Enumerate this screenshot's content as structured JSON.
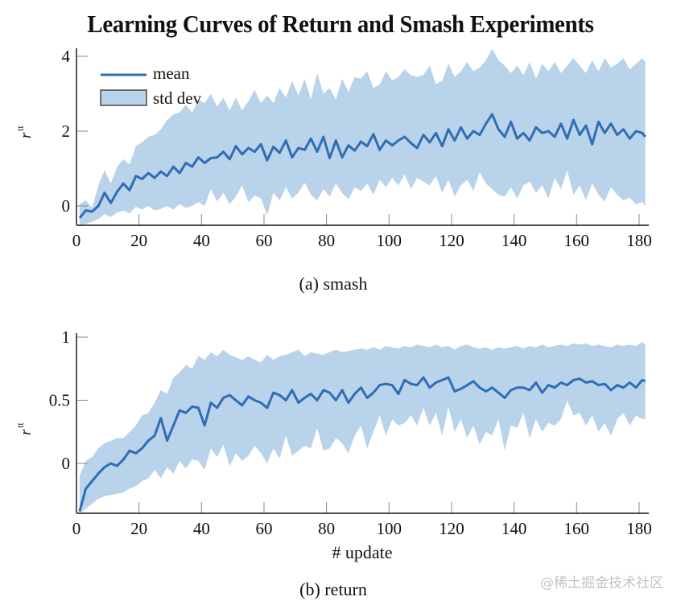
{
  "title": "Learning Curves of Return and Smash Experiments",
  "watermark": "@稀土掘金技术社区",
  "legend": {
    "mean_label": "mean",
    "std_label": "std dev"
  },
  "colors": {
    "mean_line": "#2f6db5",
    "std_fill": "#b9d3ea",
    "axis": "#111111",
    "tick": "#888888"
  },
  "chart_data": [
    {
      "type": "area",
      "id": "smash",
      "caption": "(a) smash",
      "title": "",
      "xlabel": "",
      "ylabel": "r",
      "ylabel_sup": "tt",
      "xlim": [
        0,
        182
      ],
      "ylim": [
        -0.5,
        4.2
      ],
      "xticks": [
        0,
        20,
        40,
        60,
        80,
        100,
        120,
        140,
        160,
        180
      ],
      "yticks": [
        0,
        2,
        4
      ],
      "ytick_labels": [
        "0",
        "2",
        "4"
      ],
      "legend": "top-left",
      "grid": false,
      "x": [
        1,
        3,
        5,
        7,
        9,
        11,
        13,
        15,
        17,
        19,
        21,
        23,
        25,
        27,
        29,
        31,
        33,
        35,
        37,
        39,
        41,
        43,
        45,
        47,
        49,
        51,
        53,
        55,
        57,
        59,
        61,
        63,
        65,
        67,
        69,
        71,
        73,
        75,
        77,
        79,
        81,
        83,
        85,
        87,
        89,
        91,
        93,
        95,
        97,
        99,
        101,
        103,
        105,
        107,
        109,
        111,
        113,
        115,
        117,
        119,
        121,
        123,
        125,
        127,
        129,
        131,
        133,
        135,
        137,
        139,
        141,
        143,
        145,
        147,
        149,
        151,
        153,
        155,
        157,
        159,
        161,
        163,
        165,
        167,
        169,
        171,
        173,
        175,
        177,
        179,
        181,
        182
      ],
      "series": [
        {
          "name": "mean",
          "values": [
            -0.32,
            -0.12,
            -0.15,
            0.0,
            0.35,
            0.08,
            0.38,
            0.6,
            0.42,
            0.8,
            0.72,
            0.88,
            0.75,
            0.92,
            0.8,
            1.05,
            0.88,
            1.15,
            1.05,
            1.3,
            1.15,
            1.28,
            1.3,
            1.45,
            1.25,
            1.6,
            1.38,
            1.55,
            1.45,
            1.65,
            1.22,
            1.58,
            1.42,
            1.75,
            1.3,
            1.55,
            1.5,
            1.8,
            1.45,
            1.85,
            1.28,
            1.75,
            1.3,
            1.62,
            1.48,
            1.72,
            1.6,
            1.92,
            1.5,
            1.75,
            1.62,
            1.75,
            1.85,
            1.68,
            1.55,
            1.9,
            1.7,
            1.95,
            1.6,
            2.05,
            1.75,
            2.1,
            1.8,
            2.0,
            1.9,
            2.2,
            2.45,
            2.05,
            1.85,
            2.25,
            1.8,
            1.95,
            1.75,
            2.1,
            1.95,
            2.0,
            1.85,
            2.2,
            1.8,
            2.3,
            1.9,
            2.15,
            1.65,
            2.25,
            1.95,
            2.2,
            1.9,
            2.05,
            1.8,
            2.0,
            1.95,
            1.85
          ]
        },
        {
          "name": "std_upper",
          "values": [
            0.05,
            0.15,
            -0.05,
            0.55,
            0.95,
            0.6,
            1.05,
            1.25,
            1.1,
            1.6,
            1.7,
            1.85,
            1.9,
            2.05,
            2.3,
            2.45,
            2.5,
            2.7,
            2.5,
            2.85,
            2.75,
            3.0,
            2.65,
            2.9,
            2.55,
            2.9,
            2.55,
            2.8,
            3.1,
            2.75,
            2.95,
            2.75,
            3.15,
            2.9,
            3.35,
            2.95,
            3.4,
            2.85,
            3.55,
            3.0,
            3.15,
            2.85,
            3.4,
            3.05,
            3.45,
            3.4,
            3.6,
            3.15,
            3.25,
            3.6,
            3.35,
            3.45,
            3.65,
            3.5,
            3.45,
            3.5,
            3.75,
            3.25,
            3.35,
            3.8,
            3.45,
            3.6,
            3.85,
            3.6,
            3.7,
            3.9,
            4.2,
            3.9,
            3.75,
            3.55,
            3.75,
            3.5,
            3.85,
            3.4,
            3.8,
            3.6,
            3.85,
            3.55,
            3.75,
            3.95,
            3.75,
            3.55,
            3.9,
            3.6,
            3.95,
            3.7,
            3.8,
            3.95,
            3.65,
            3.8,
            3.95,
            3.85
          ]
        },
        {
          "name": "std_lower",
          "values": [
            -0.5,
            -0.48,
            -0.42,
            -0.35,
            -0.22,
            -0.3,
            -0.18,
            -0.12,
            -0.2,
            -0.02,
            -0.1,
            0.0,
            -0.12,
            -0.08,
            0.0,
            -0.1,
            0.05,
            -0.05,
            0.0,
            0.1,
            0.0,
            0.45,
            0.12,
            0.35,
            0.05,
            0.25,
            0.55,
            0.1,
            0.28,
            0.2,
            -0.25,
            0.35,
            0.15,
            0.5,
            0.2,
            0.35,
            0.62,
            0.3,
            0.15,
            0.45,
            0.25,
            0.6,
            0.35,
            0.18,
            0.5,
            0.4,
            0.6,
            0.3,
            0.7,
            0.5,
            0.75,
            0.55,
            0.85,
            0.45,
            0.75,
            0.65,
            0.55,
            0.8,
            0.35,
            0.7,
            0.25,
            0.55,
            0.7,
            0.4,
            0.9,
            0.6,
            0.45,
            0.3,
            0.25,
            0.5,
            0.2,
            0.55,
            0.65,
            0.35,
            0.55,
            0.2,
            0.75,
            0.45,
            0.95,
            0.3,
            0.55,
            0.15,
            0.6,
            0.3,
            0.12,
            0.5,
            0.3,
            0.15,
            0.22,
            0.05,
            0.1,
            0.0
          ]
        }
      ]
    },
    {
      "type": "area",
      "id": "return",
      "caption": "(b) return",
      "title": "",
      "xlabel": "# update",
      "ylabel": "r",
      "ylabel_sup": "tt",
      "xlim": [
        0,
        182
      ],
      "ylim": [
        -0.4,
        1.0
      ],
      "xticks": [
        0,
        20,
        40,
        60,
        80,
        100,
        120,
        140,
        160,
        180
      ],
      "yticks": [
        0,
        0.5,
        1
      ],
      "ytick_labels": [
        "0",
        "0.5",
        "1"
      ],
      "grid": false,
      "x": [
        1,
        3,
        5,
        7,
        9,
        11,
        13,
        15,
        17,
        19,
        21,
        23,
        25,
        27,
        29,
        31,
        33,
        35,
        37,
        39,
        41,
        43,
        45,
        47,
        49,
        51,
        53,
        55,
        57,
        59,
        61,
        63,
        65,
        67,
        69,
        71,
        73,
        75,
        77,
        79,
        81,
        83,
        85,
        87,
        89,
        91,
        93,
        95,
        97,
        99,
        101,
        103,
        105,
        107,
        109,
        111,
        113,
        115,
        117,
        119,
        121,
        123,
        125,
        127,
        129,
        131,
        133,
        135,
        137,
        139,
        141,
        143,
        145,
        147,
        149,
        151,
        153,
        155,
        157,
        159,
        161,
        163,
        165,
        167,
        169,
        171,
        173,
        175,
        177,
        179,
        181,
        182
      ],
      "series": [
        {
          "name": "mean",
          "values": [
            -0.38,
            -0.2,
            -0.14,
            -0.08,
            -0.03,
            0.0,
            -0.02,
            0.03,
            0.1,
            0.08,
            0.12,
            0.18,
            0.22,
            0.36,
            0.18,
            0.3,
            0.42,
            0.4,
            0.45,
            0.44,
            0.3,
            0.48,
            0.44,
            0.52,
            0.54,
            0.5,
            0.46,
            0.53,
            0.5,
            0.48,
            0.44,
            0.56,
            0.54,
            0.5,
            0.58,
            0.48,
            0.52,
            0.55,
            0.5,
            0.58,
            0.56,
            0.5,
            0.58,
            0.48,
            0.55,
            0.6,
            0.52,
            0.56,
            0.62,
            0.63,
            0.62,
            0.55,
            0.66,
            0.63,
            0.62,
            0.68,
            0.6,
            0.64,
            0.66,
            0.68,
            0.57,
            0.59,
            0.62,
            0.65,
            0.6,
            0.57,
            0.6,
            0.56,
            0.52,
            0.58,
            0.6,
            0.6,
            0.58,
            0.64,
            0.56,
            0.62,
            0.6,
            0.64,
            0.62,
            0.66,
            0.67,
            0.64,
            0.65,
            0.62,
            0.63,
            0.58,
            0.62,
            0.6,
            0.64,
            0.6,
            0.66,
            0.65
          ]
        },
        {
          "name": "std_upper",
          "values": [
            -0.1,
            0.02,
            0.05,
            0.12,
            0.16,
            0.18,
            0.2,
            0.2,
            0.25,
            0.3,
            0.38,
            0.4,
            0.48,
            0.58,
            0.55,
            0.68,
            0.72,
            0.78,
            0.75,
            0.85,
            0.82,
            0.88,
            0.85,
            0.9,
            0.86,
            0.84,
            0.82,
            0.85,
            0.82,
            0.8,
            0.86,
            0.82,
            0.85,
            0.86,
            0.88,
            0.9,
            0.85,
            0.88,
            0.87,
            0.86,
            0.88,
            0.9,
            0.88,
            0.89,
            0.9,
            0.91,
            0.9,
            0.92,
            0.9,
            0.93,
            0.92,
            0.91,
            0.93,
            0.92,
            0.94,
            0.93,
            0.92,
            0.94,
            0.92,
            0.93,
            0.9,
            0.93,
            0.94,
            0.92,
            0.91,
            0.92,
            0.9,
            0.92,
            0.91,
            0.92,
            0.93,
            0.91,
            0.93,
            0.92,
            0.94,
            0.92,
            0.93,
            0.94,
            0.93,
            0.95,
            0.94,
            0.95,
            0.93,
            0.94,
            0.93,
            0.92,
            0.94,
            0.93,
            0.94,
            0.93,
            0.96,
            0.94
          ]
        },
        {
          "name": "std_lower",
          "values": [
            -0.4,
            -0.36,
            -0.32,
            -0.28,
            -0.26,
            -0.25,
            -0.24,
            -0.23,
            -0.2,
            -0.18,
            -0.14,
            -0.12,
            -0.05,
            -0.12,
            -0.03,
            -0.08,
            0.02,
            -0.04,
            0.03,
            0.02,
            -0.05,
            0.12,
            0.05,
            0.15,
            -0.02,
            0.08,
            0.02,
            0.06,
            0.14,
            0.08,
            0.0,
            0.12,
            0.04,
            0.22,
            0.06,
            0.1,
            0.14,
            0.12,
            0.28,
            0.1,
            0.12,
            0.2,
            0.16,
            0.08,
            0.22,
            0.3,
            0.12,
            0.25,
            0.38,
            0.22,
            0.35,
            0.3,
            0.32,
            0.38,
            0.3,
            0.44,
            0.3,
            0.4,
            0.22,
            0.45,
            0.25,
            0.35,
            0.2,
            0.3,
            0.15,
            0.25,
            0.22,
            0.35,
            0.1,
            0.3,
            0.28,
            0.4,
            0.2,
            0.35,
            0.25,
            0.32,
            0.3,
            0.35,
            0.5,
            0.38,
            0.4,
            0.3,
            0.38,
            0.25,
            0.32,
            0.22,
            0.35,
            0.4,
            0.3,
            0.38,
            0.35,
            0.35
          ]
        }
      ]
    }
  ]
}
